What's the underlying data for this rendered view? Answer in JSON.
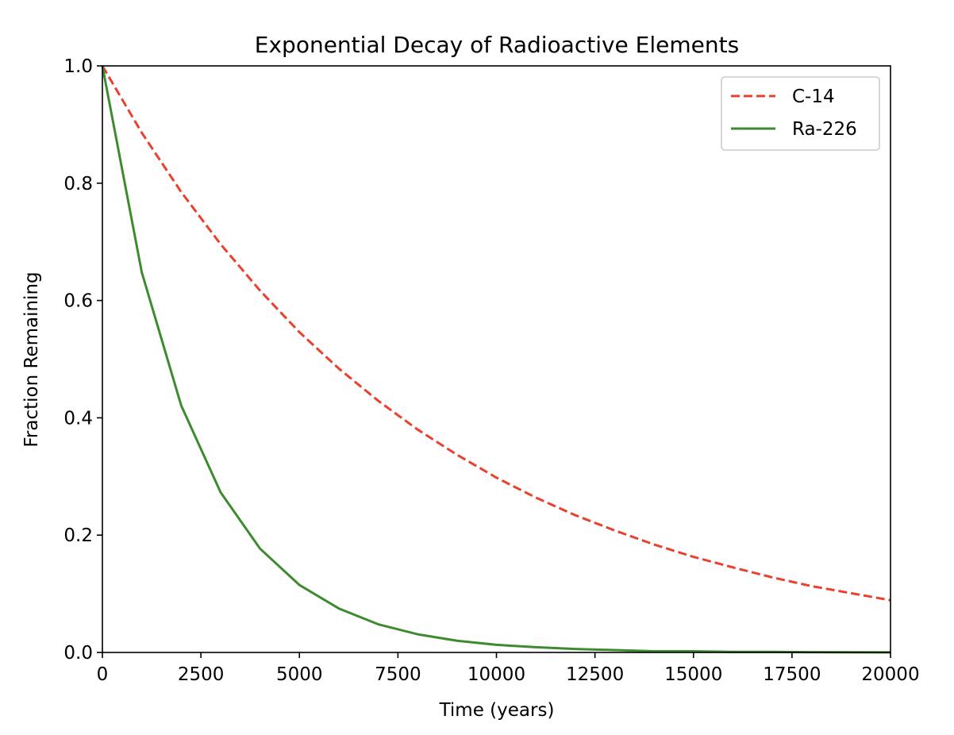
{
  "chart_data": {
    "type": "line",
    "title": "Exponential Decay of Radioactive Elements",
    "xlabel": "Time (years)",
    "ylabel": "Fraction Remaining",
    "xlim": [
      0,
      20000
    ],
    "ylim": [
      0,
      1.0
    ],
    "xticks": [
      0,
      2500,
      5000,
      7500,
      10000,
      12500,
      15000,
      17500,
      20000
    ],
    "xtick_labels": [
      "0",
      "2500",
      "5000",
      "7500",
      "10000",
      "12500",
      "15000",
      "17500",
      "20000"
    ],
    "yticks": [
      0,
      0.2,
      0.4,
      0.6,
      0.8,
      1.0
    ],
    "ytick_labels": [
      "0.0",
      "0.2",
      "0.4",
      "0.6",
      "0.8",
      "1.0"
    ],
    "grid": false,
    "legend_position": "top-right",
    "x": [
      0,
      1000,
      2000,
      3000,
      4000,
      5000,
      6000,
      7000,
      8000,
      9000,
      10000,
      11000,
      12000,
      13000,
      14000,
      15000,
      16000,
      17000,
      18000,
      19000,
      20000
    ],
    "series": [
      {
        "name": "C-14",
        "color": "#e8412e",
        "style": "dashed",
        "values": [
          1.0,
          0.886,
          0.785,
          0.696,
          0.617,
          0.546,
          0.484,
          0.429,
          0.38,
          0.337,
          0.298,
          0.264,
          0.234,
          0.208,
          0.184,
          0.163,
          0.145,
          0.128,
          0.113,
          0.101,
          0.089
        ]
      },
      {
        "name": "Ra-226",
        "color": "#3d8b2f",
        "style": "solid",
        "values": [
          1.0,
          0.648,
          0.421,
          0.273,
          0.177,
          0.115,
          0.075,
          0.048,
          0.031,
          0.02,
          0.013,
          0.009,
          0.006,
          0.004,
          0.002,
          0.002,
          0.001,
          0.001,
          0.0005,
          0.0003,
          0.0002
        ]
      }
    ]
  }
}
